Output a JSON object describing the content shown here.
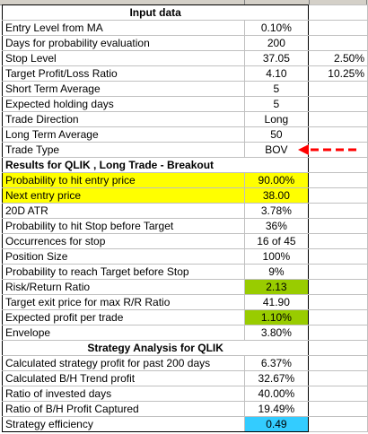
{
  "sheet": {
    "input_title": "Input data",
    "inputs": [
      {
        "label": "Entry Level from MA",
        "value": "0.10%",
        "extra": ""
      },
      {
        "label": "Days for probability evaluation",
        "value": "200",
        "extra": ""
      },
      {
        "label": "Stop Level",
        "value": "37.05",
        "extra": "2.50%"
      },
      {
        "label": "Target Profit/Loss Ratio",
        "value": "4.10",
        "extra": "10.25%"
      },
      {
        "label": "Short Term Average",
        "value": "5",
        "extra": ""
      },
      {
        "label": "Expected holding days",
        "value": "5",
        "extra": ""
      },
      {
        "label": "Trade Direction",
        "value": "Long",
        "extra": ""
      },
      {
        "label": "Long Term Average",
        "value": "50",
        "extra": ""
      },
      {
        "label": "Trade Type",
        "value": "BOV",
        "extra": ""
      }
    ],
    "results_title": "Results for QLIK , Long Trade - Breakout",
    "results": [
      {
        "label": "Probability to hit entry price",
        "value": "90.00%",
        "hl": "y",
        "vhl": "y"
      },
      {
        "label": "Next entry price",
        "value": "38.00",
        "hl": "y",
        "vhl": "y"
      },
      {
        "label": "20D ATR",
        "value": "3.78%",
        "hl": "",
        "vhl": ""
      },
      {
        "label": "Probability to hit Stop before Target",
        "value": "36%",
        "hl": "",
        "vhl": ""
      },
      {
        "label": "Occurrences for stop",
        "value": "16 of 45",
        "hl": "",
        "vhl": ""
      },
      {
        "label": "Position Size",
        "value": "100%",
        "hl": "",
        "vhl": ""
      },
      {
        "label": "Probability to reach Target before Stop",
        "value": "9%",
        "hl": "",
        "vhl": ""
      },
      {
        "label": "Risk/Return Ratio",
        "value": "2.13",
        "hl": "",
        "vhl": "g"
      },
      {
        "label": "Target exit price for max R/R Ratio",
        "value": "41.90",
        "hl": "",
        "vhl": ""
      },
      {
        "label": "Expected profit per trade",
        "value": "1.10%",
        "hl": "",
        "vhl": "g"
      },
      {
        "label": "Envelope",
        "value": "3.80%",
        "hl": "",
        "vhl": ""
      }
    ],
    "strategy_title": "Strategy Analysis for QLIK",
    "strategy": [
      {
        "label": "Calculated strategy profit for past 200 days",
        "value": "6.37%",
        "vhl": ""
      },
      {
        "label": "Calculated B/H Trend profit",
        "value": "32.67%",
        "vhl": ""
      },
      {
        "label": "Ratio of invested days",
        "value": "40.00%",
        "vhl": ""
      },
      {
        "label": "Ratio of B/H Profit Captured",
        "value": "19.49%",
        "vhl": ""
      },
      {
        "label": "Strategy efficiency",
        "value": "0.49",
        "vhl": "cy"
      }
    ],
    "annotation_color": "#ff0000"
  }
}
